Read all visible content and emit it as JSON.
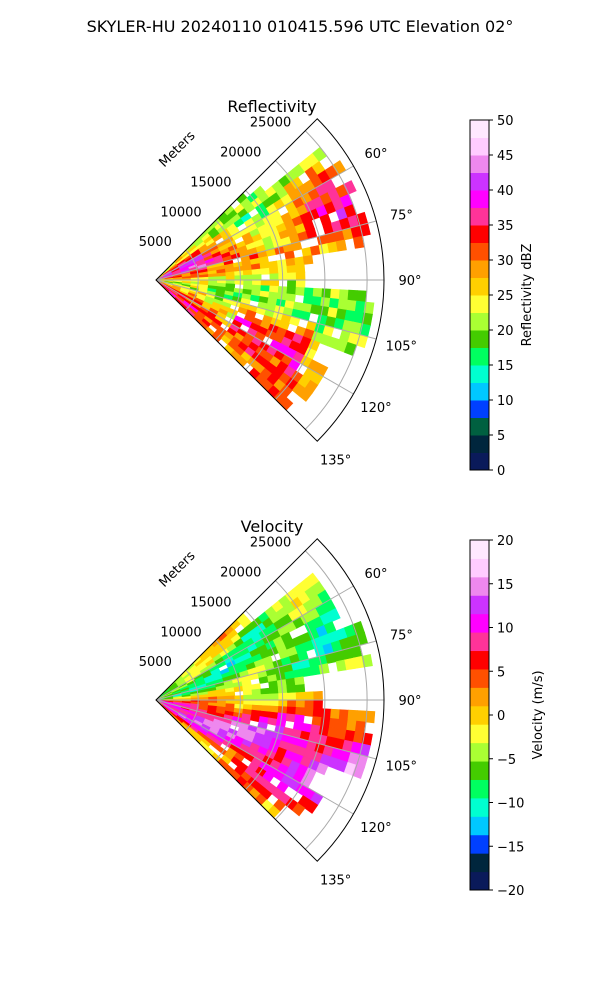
{
  "figure": {
    "title": "SKYLER-HU  20240110  010415.596 UTC Elevation 02°"
  },
  "chart_data": [
    {
      "type": "heatmap",
      "subtype": "polar-sector (PPI)",
      "title": "Reflectivity",
      "radial_axis_label": "Meters",
      "radial_ticks": [
        "5000",
        "10000",
        "15000",
        "20000",
        "25000"
      ],
      "r_range": [
        0,
        27000
      ],
      "angle_ticks": [
        "60°",
        "75°",
        "90°",
        "105°",
        "120°",
        "135°"
      ],
      "angle_range_deg": [
        45,
        135
      ],
      "grid": true,
      "colorbar": {
        "label": "Reflectivity dBZ",
        "range": [
          0,
          50
        ],
        "ticks": [
          "0",
          "5",
          "10",
          "15",
          "20",
          "25",
          "30",
          "35",
          "40",
          "45",
          "50"
        ]
      },
      "field_summary": {
        "dominant_range": [
          20,
          35
        ],
        "max_approx": 42,
        "high_cells_azimuth_deg": [
          100,
          130
        ],
        "gaps_azimuth_deg": [
          80,
          92
        ]
      }
    },
    {
      "type": "heatmap",
      "subtype": "polar-sector (PPI)",
      "title": "Velocity",
      "radial_axis_label": "Meters",
      "radial_ticks": [
        "5000",
        "10000",
        "15000",
        "20000",
        "25000"
      ],
      "r_range": [
        0,
        27000
      ],
      "angle_ticks": [
        "60°",
        "75°",
        "90°",
        "105°",
        "120°",
        "135°"
      ],
      "angle_range_deg": [
        45,
        135
      ],
      "grid": true,
      "colorbar": {
        "label": "Velocity (m/s)",
        "range": [
          -20,
          20
        ],
        "ticks": [
          "−20",
          "−15",
          "−10",
          "−5",
          "0",
          "5",
          "10",
          "15",
          "20"
        ]
      },
      "field_summary": {
        "positive_band_azimuth_deg": [
          95,
          125
        ],
        "negative_band_azimuth_deg": [
          55,
          85
        ],
        "range_ms": [
          -12,
          17
        ]
      }
    }
  ],
  "colormaps": {
    "reflectivity": [
      "#0a1a5a",
      "#00263d",
      "#006040",
      "#0040ff",
      "#00c8ff",
      "#00ffd0",
      "#00ff60",
      "#44cc00",
      "#aaff33",
      "#ffff33",
      "#ffd000",
      "#ffa000",
      "#ff5000",
      "#ff0000",
      "#ff3399",
      "#ff00ff",
      "#cc33ff",
      "#ee88ee",
      "#ffccff",
      "#ffe8ff"
    ],
    "velocity": [
      "#0a1a5a",
      "#00263d",
      "#0040ff",
      "#00c8ff",
      "#00ffd0",
      "#00ff60",
      "#44cc00",
      "#aaff33",
      "#ffff33",
      "#ffd000",
      "#ffa000",
      "#ff5000",
      "#ff0000",
      "#ff3399",
      "#ff00ff",
      "#cc33ff",
      "#ee88ee",
      "#ffccff",
      "#ffe8ff"
    ]
  }
}
